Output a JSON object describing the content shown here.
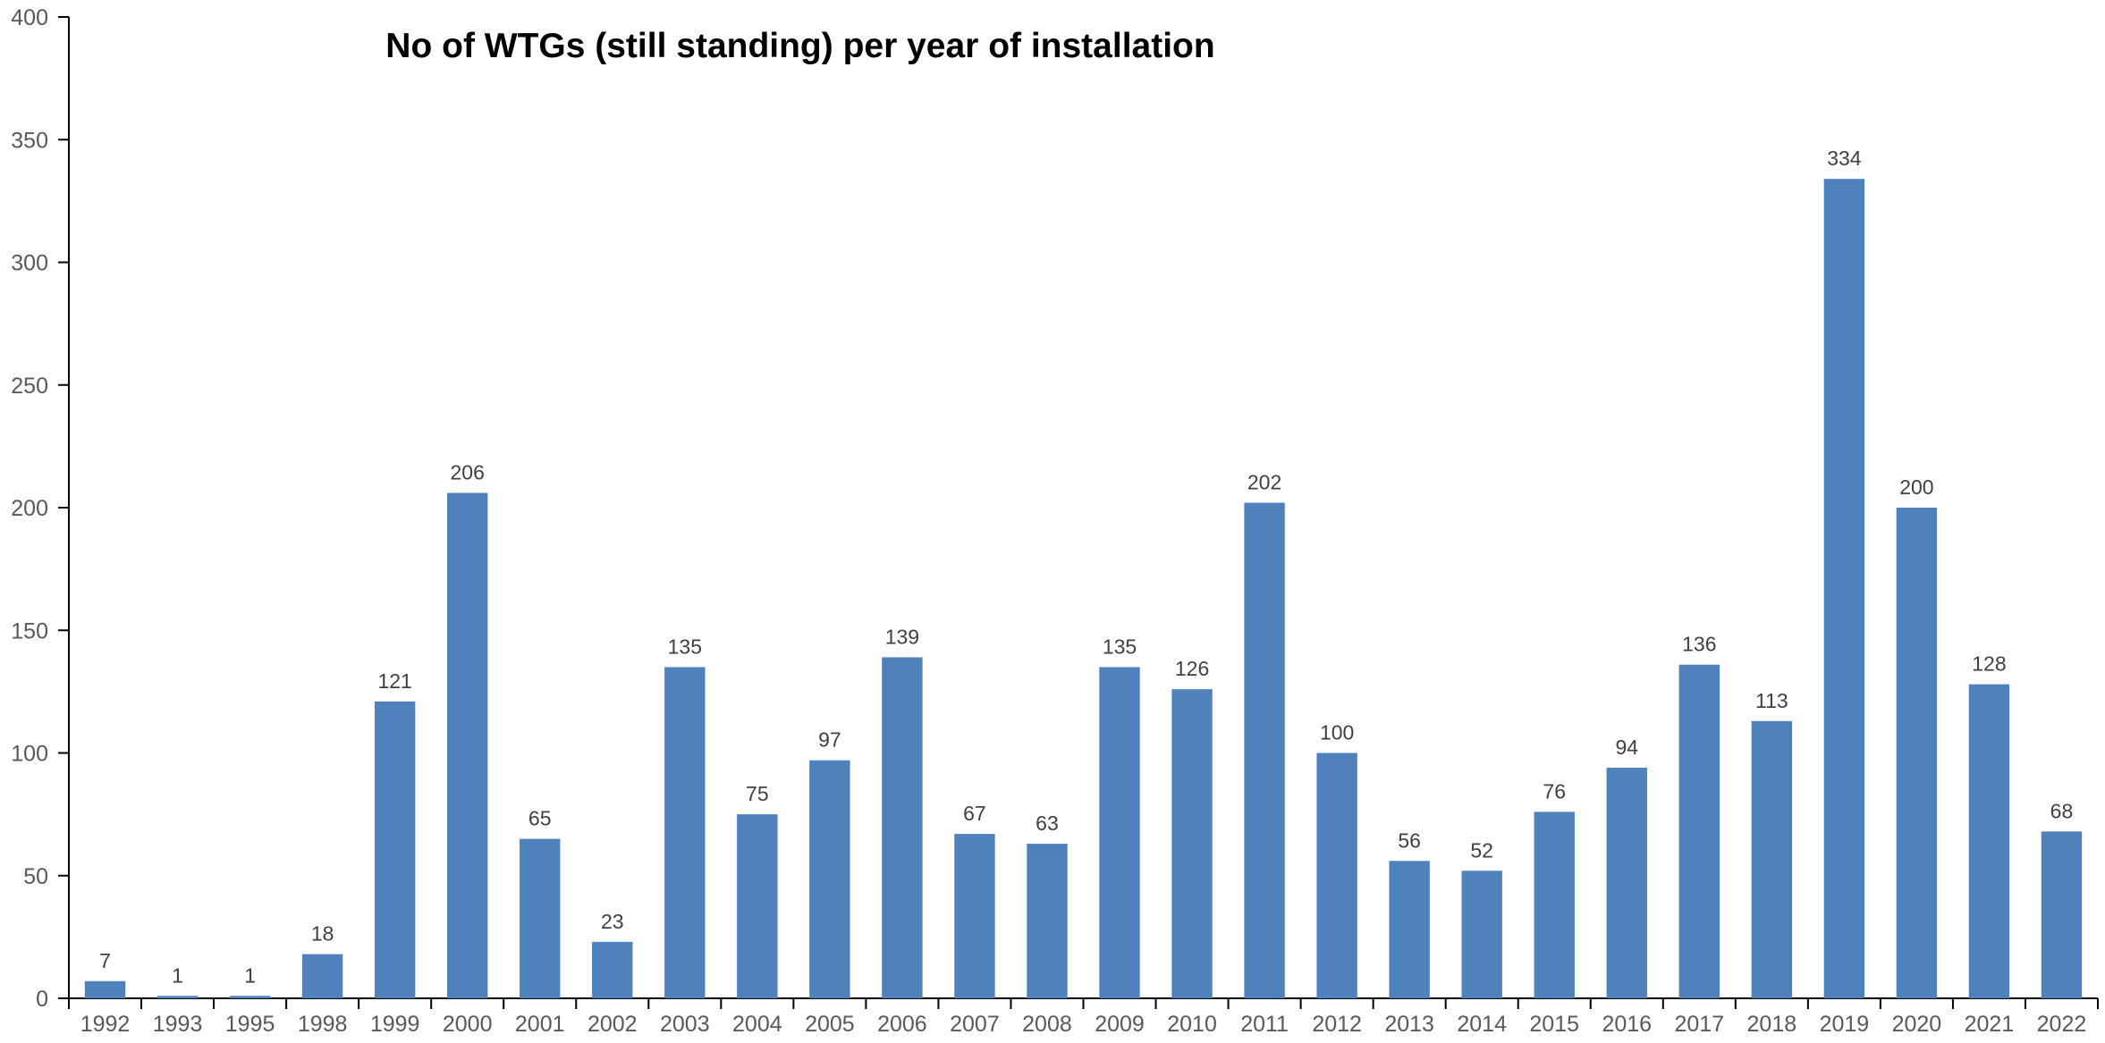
{
  "chart_data": {
    "type": "bar",
    "title": "No of WTGs (still standing) per year of installation",
    "xlabel": "",
    "ylabel": "",
    "categories": [
      "1992",
      "1993",
      "1995",
      "1998",
      "1999",
      "2000",
      "2001",
      "2002",
      "2003",
      "2004",
      "2005",
      "2006",
      "2007",
      "2008",
      "2009",
      "2010",
      "2011",
      "2012",
      "2013",
      "2014",
      "2015",
      "2016",
      "2017",
      "2018",
      "2019",
      "2020",
      "2021",
      "2022"
    ],
    "values": [
      7,
      1,
      1,
      18,
      121,
      206,
      65,
      23,
      135,
      75,
      97,
      139,
      67,
      63,
      135,
      126,
      202,
      100,
      56,
      52,
      76,
      94,
      136,
      113,
      334,
      200,
      128,
      68
    ],
    "ylim": [
      0,
      400
    ],
    "yticks": [
      0,
      50,
      100,
      150,
      200,
      250,
      300,
      350,
      400
    ],
    "grid": false,
    "legend": "none",
    "data_labels": true,
    "bar_color": "#4F81BD",
    "axis_color": "#000000",
    "tick_label_color": "#595959"
  }
}
